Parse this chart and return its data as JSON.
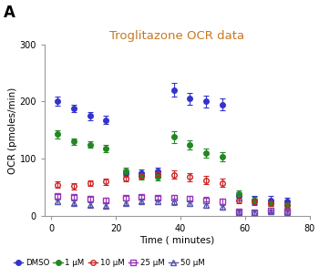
{
  "title": "Troglitazone OCR data",
  "panel_label": "A",
  "xlabel": "Time ( minutes)",
  "ylabel": "OCR (pmoles/min)",
  "xlim": [
    -2,
    80
  ],
  "ylim": [
    0,
    300
  ],
  "xticks": [
    0,
    20,
    40,
    60,
    80
  ],
  "yticks": [
    0,
    100,
    200,
    300
  ],
  "background_color": "#ffffff",
  "title_color": "#c87820",
  "spine_color": "#999999",
  "series": {
    "DMSO": {
      "color": "#3333cc",
      "marker": "o",
      "marker_fill": true,
      "linewidth": 1.2,
      "markersize": 4,
      "x": [
        2,
        7,
        12,
        17,
        23,
        28,
        33,
        38,
        43,
        48,
        53,
        58,
        63,
        68,
        73
      ],
      "y": [
        200,
        188,
        175,
        168,
        75,
        75,
        78,
        220,
        205,
        200,
        195,
        35,
        28,
        28,
        25
      ],
      "yerr": [
        8,
        7,
        7,
        7,
        7,
        7,
        7,
        12,
        10,
        10,
        10,
        7,
        7,
        7,
        7
      ]
    },
    "1 µM": {
      "color": "#228822",
      "marker": "o",
      "marker_fill": true,
      "linewidth": 1.2,
      "markersize": 4,
      "x": [
        2,
        7,
        12,
        17,
        23,
        28,
        33,
        38,
        43,
        48,
        53,
        58,
        63,
        68,
        73
      ],
      "y": [
        143,
        130,
        125,
        118,
        78,
        70,
        68,
        138,
        125,
        110,
        103,
        38,
        28,
        23,
        20
      ],
      "yerr": [
        7,
        6,
        6,
        6,
        6,
        6,
        6,
        10,
        8,
        8,
        8,
        7,
        5,
        5,
        5
      ]
    },
    "10 µM": {
      "color": "#cc2222",
      "marker": "o",
      "marker_fill": false,
      "linewidth": 1.2,
      "markersize": 4,
      "x": [
        2,
        7,
        12,
        17,
        23,
        28,
        33,
        38,
        43,
        48,
        53,
        58,
        63,
        68,
        73
      ],
      "y": [
        55,
        52,
        58,
        60,
        65,
        70,
        73,
        72,
        68,
        63,
        58,
        28,
        25,
        23,
        20
      ],
      "yerr": [
        5,
        5,
        5,
        5,
        5,
        5,
        5,
        7,
        7,
        7,
        7,
        5,
        5,
        5,
        5
      ]
    },
    "25 µM": {
      "color": "#9933bb",
      "marker": "s",
      "marker_fill": false,
      "linewidth": 1.2,
      "markersize": 4,
      "x": [
        2,
        7,
        12,
        17,
        23,
        28,
        33,
        38,
        43,
        48,
        53,
        58,
        63,
        68,
        73
      ],
      "y": [
        35,
        33,
        30,
        28,
        32,
        33,
        32,
        32,
        30,
        28,
        25,
        8,
        6,
        10,
        8
      ],
      "yerr": [
        4,
        4,
        4,
        4,
        4,
        4,
        4,
        5,
        5,
        5,
        5,
        4,
        4,
        4,
        4
      ]
    },
    "50 µM": {
      "color": "#5555aa",
      "marker": "^",
      "marker_fill": false,
      "linewidth": 1.2,
      "markersize": 4,
      "x": [
        2,
        7,
        12,
        17,
        23,
        28,
        33,
        38,
        43,
        48,
        53,
        58,
        63,
        68,
        73
      ],
      "y": [
        25,
        23,
        20,
        18,
        23,
        26,
        25,
        25,
        23,
        20,
        16,
        6,
        6,
        8,
        6
      ],
      "yerr": [
        4,
        4,
        4,
        4,
        4,
        4,
        4,
        5,
        5,
        5,
        5,
        4,
        4,
        4,
        4
      ]
    }
  },
  "legend_order": [
    "DMSO",
    "1 µM",
    "10 µM",
    "25 µM",
    "50 µM"
  ]
}
